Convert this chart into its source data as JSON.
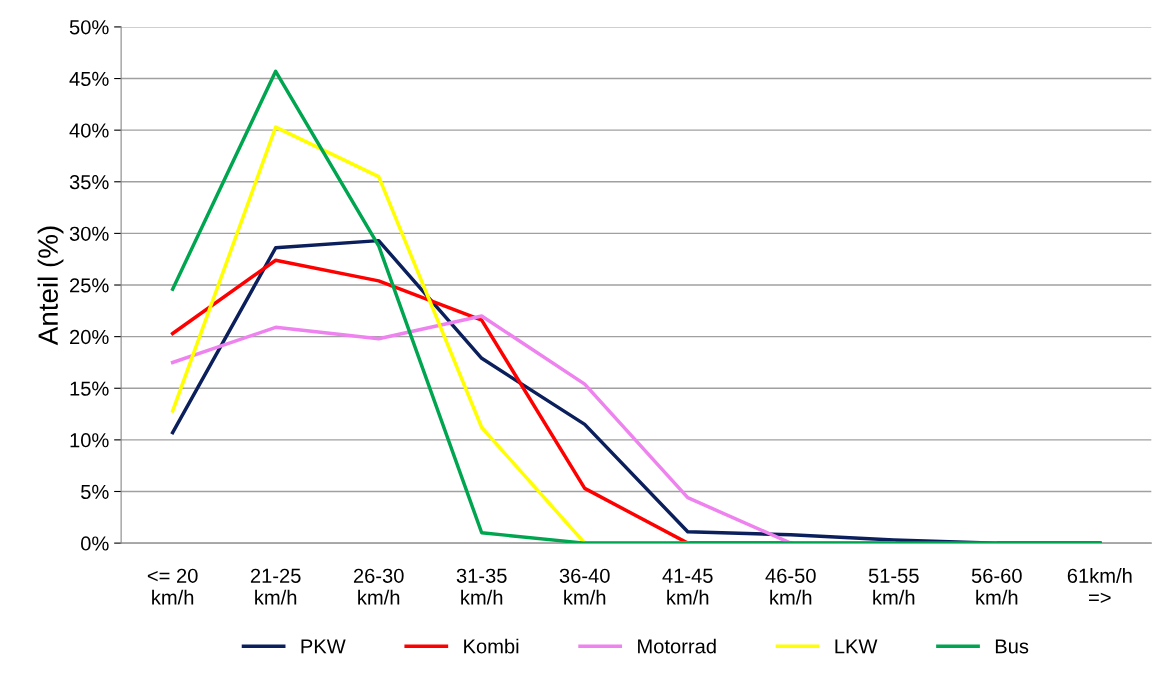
{
  "chart_data": {
    "type": "line",
    "ylabel": "Anteil (%)",
    "categories": [
      "<= 20\nkm/h",
      "21-25\nkm/h",
      "26-30\nkm/h",
      "31-35\nkm/h",
      "36-40\nkm/h",
      "41-45\nkm/h",
      "46-50\nkm/h",
      "51-55\nkm/h",
      "56-60\nkm/h",
      "61km/h\n=>"
    ],
    "series": [
      {
        "name": "PKW",
        "color": "#0a1f5c",
        "values": [
          10.7,
          28.6,
          29.3,
          17.9,
          11.5,
          1.1,
          0.8,
          0.3,
          0,
          0
        ]
      },
      {
        "name": "Kombi",
        "color": "#ff0000",
        "values": [
          20.3,
          27.4,
          25.4,
          21.6,
          5.3,
          0,
          0,
          null,
          null,
          null
        ]
      },
      {
        "name": "Motorrad",
        "color": "#ee82ee",
        "values": [
          17.5,
          20.9,
          19.8,
          22.0,
          15.4,
          4.4,
          0,
          0,
          null,
          null
        ]
      },
      {
        "name": "LKW",
        "color": "#ffff00",
        "values": [
          12.8,
          40.3,
          35.5,
          11.2,
          0,
          0,
          null,
          null,
          null,
          null
        ]
      },
      {
        "name": "Bus",
        "color": "#00a550",
        "values": [
          24.6,
          45.7,
          28.8,
          1.0,
          0,
          0,
          0,
          0,
          0,
          0
        ]
      }
    ],
    "ylim": [
      0,
      50
    ],
    "yticks": [
      {
        "value": 0,
        "label": "0%"
      },
      {
        "value": 5,
        "label": "5%"
      },
      {
        "value": 10,
        "label": "10%"
      },
      {
        "value": 15,
        "label": "15%"
      },
      {
        "value": 20,
        "label": "20%"
      },
      {
        "value": 25,
        "label": "25%"
      },
      {
        "value": 30,
        "label": "30%"
      },
      {
        "value": 35,
        "label": "35%"
      },
      {
        "value": 40,
        "label": "40%"
      },
      {
        "value": 45,
        "label": "45%"
      },
      {
        "value": 50,
        "label": "50%"
      }
    ],
    "grid": "y",
    "legend": "bottom",
    "marker": "none",
    "line_style": "solid"
  }
}
